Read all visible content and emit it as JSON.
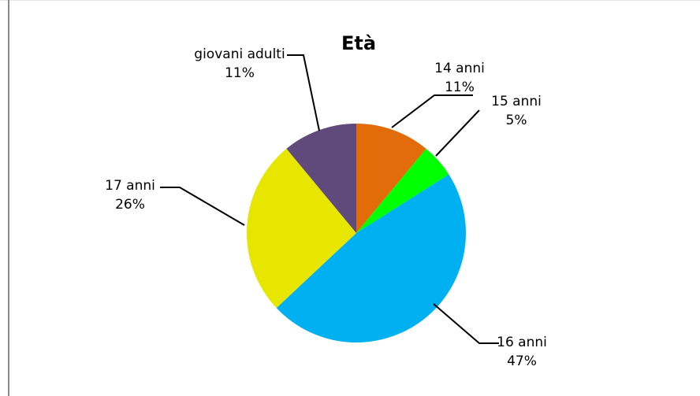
{
  "chart_data": {
    "type": "pie",
    "title": "Età",
    "categories": [
      "14 anni",
      "15 anni",
      "16 anni",
      "17 anni",
      "giovani adulti"
    ],
    "values": [
      11,
      5,
      47,
      26,
      11
    ],
    "value_labels": [
      "11%",
      "5%",
      "47%",
      "26%",
      "11%"
    ],
    "colors": [
      "#E26B0A",
      "#00FF00",
      "#00B0F0",
      "#E6E600",
      "#604A7B"
    ],
    "start_angle": "12 o'clock",
    "direction": "clockwise",
    "legend": "none",
    "grid": false
  }
}
